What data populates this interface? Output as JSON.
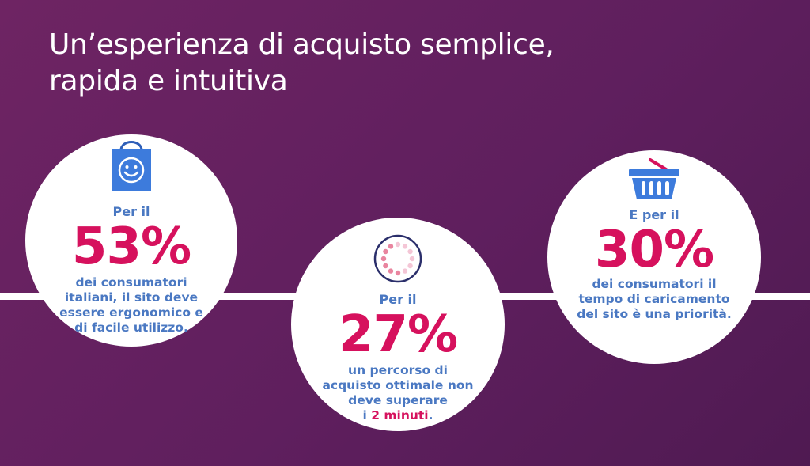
{
  "title": {
    "line1": "Un’esperienza di acquisto semplice,",
    "line2": "rapida e intuitiva"
  },
  "stats": [
    {
      "icon": "shopping-bag-smiley-icon",
      "prefix": "Per il",
      "value": "53%",
      "desc_lines": [
        "dei consumatori",
        "italiani, il sito deve",
        "essere ergonomico e",
        "di facile utilizzo."
      ]
    },
    {
      "icon": "loading-spinner-icon",
      "prefix": "Per il",
      "value": "27%",
      "desc_lines": [
        "un percorso di",
        "acquisto ottimale non",
        "deve superare"
      ],
      "desc_last_prefix": "i ",
      "desc_last_highlight": "2 minuti",
      "desc_last_suffix": "."
    },
    {
      "icon": "shopping-basket-icon",
      "prefix": "E per il",
      "value": "30%",
      "desc_lines": [
        "dei consumatori il",
        "tempo di caricamento",
        "del sito è una priorità."
      ]
    }
  ],
  "colors": {
    "background": "#6e2463",
    "accent": "#d6115d",
    "text_blue": "#4a78c2",
    "icon_blue": "#3d7bdc"
  }
}
